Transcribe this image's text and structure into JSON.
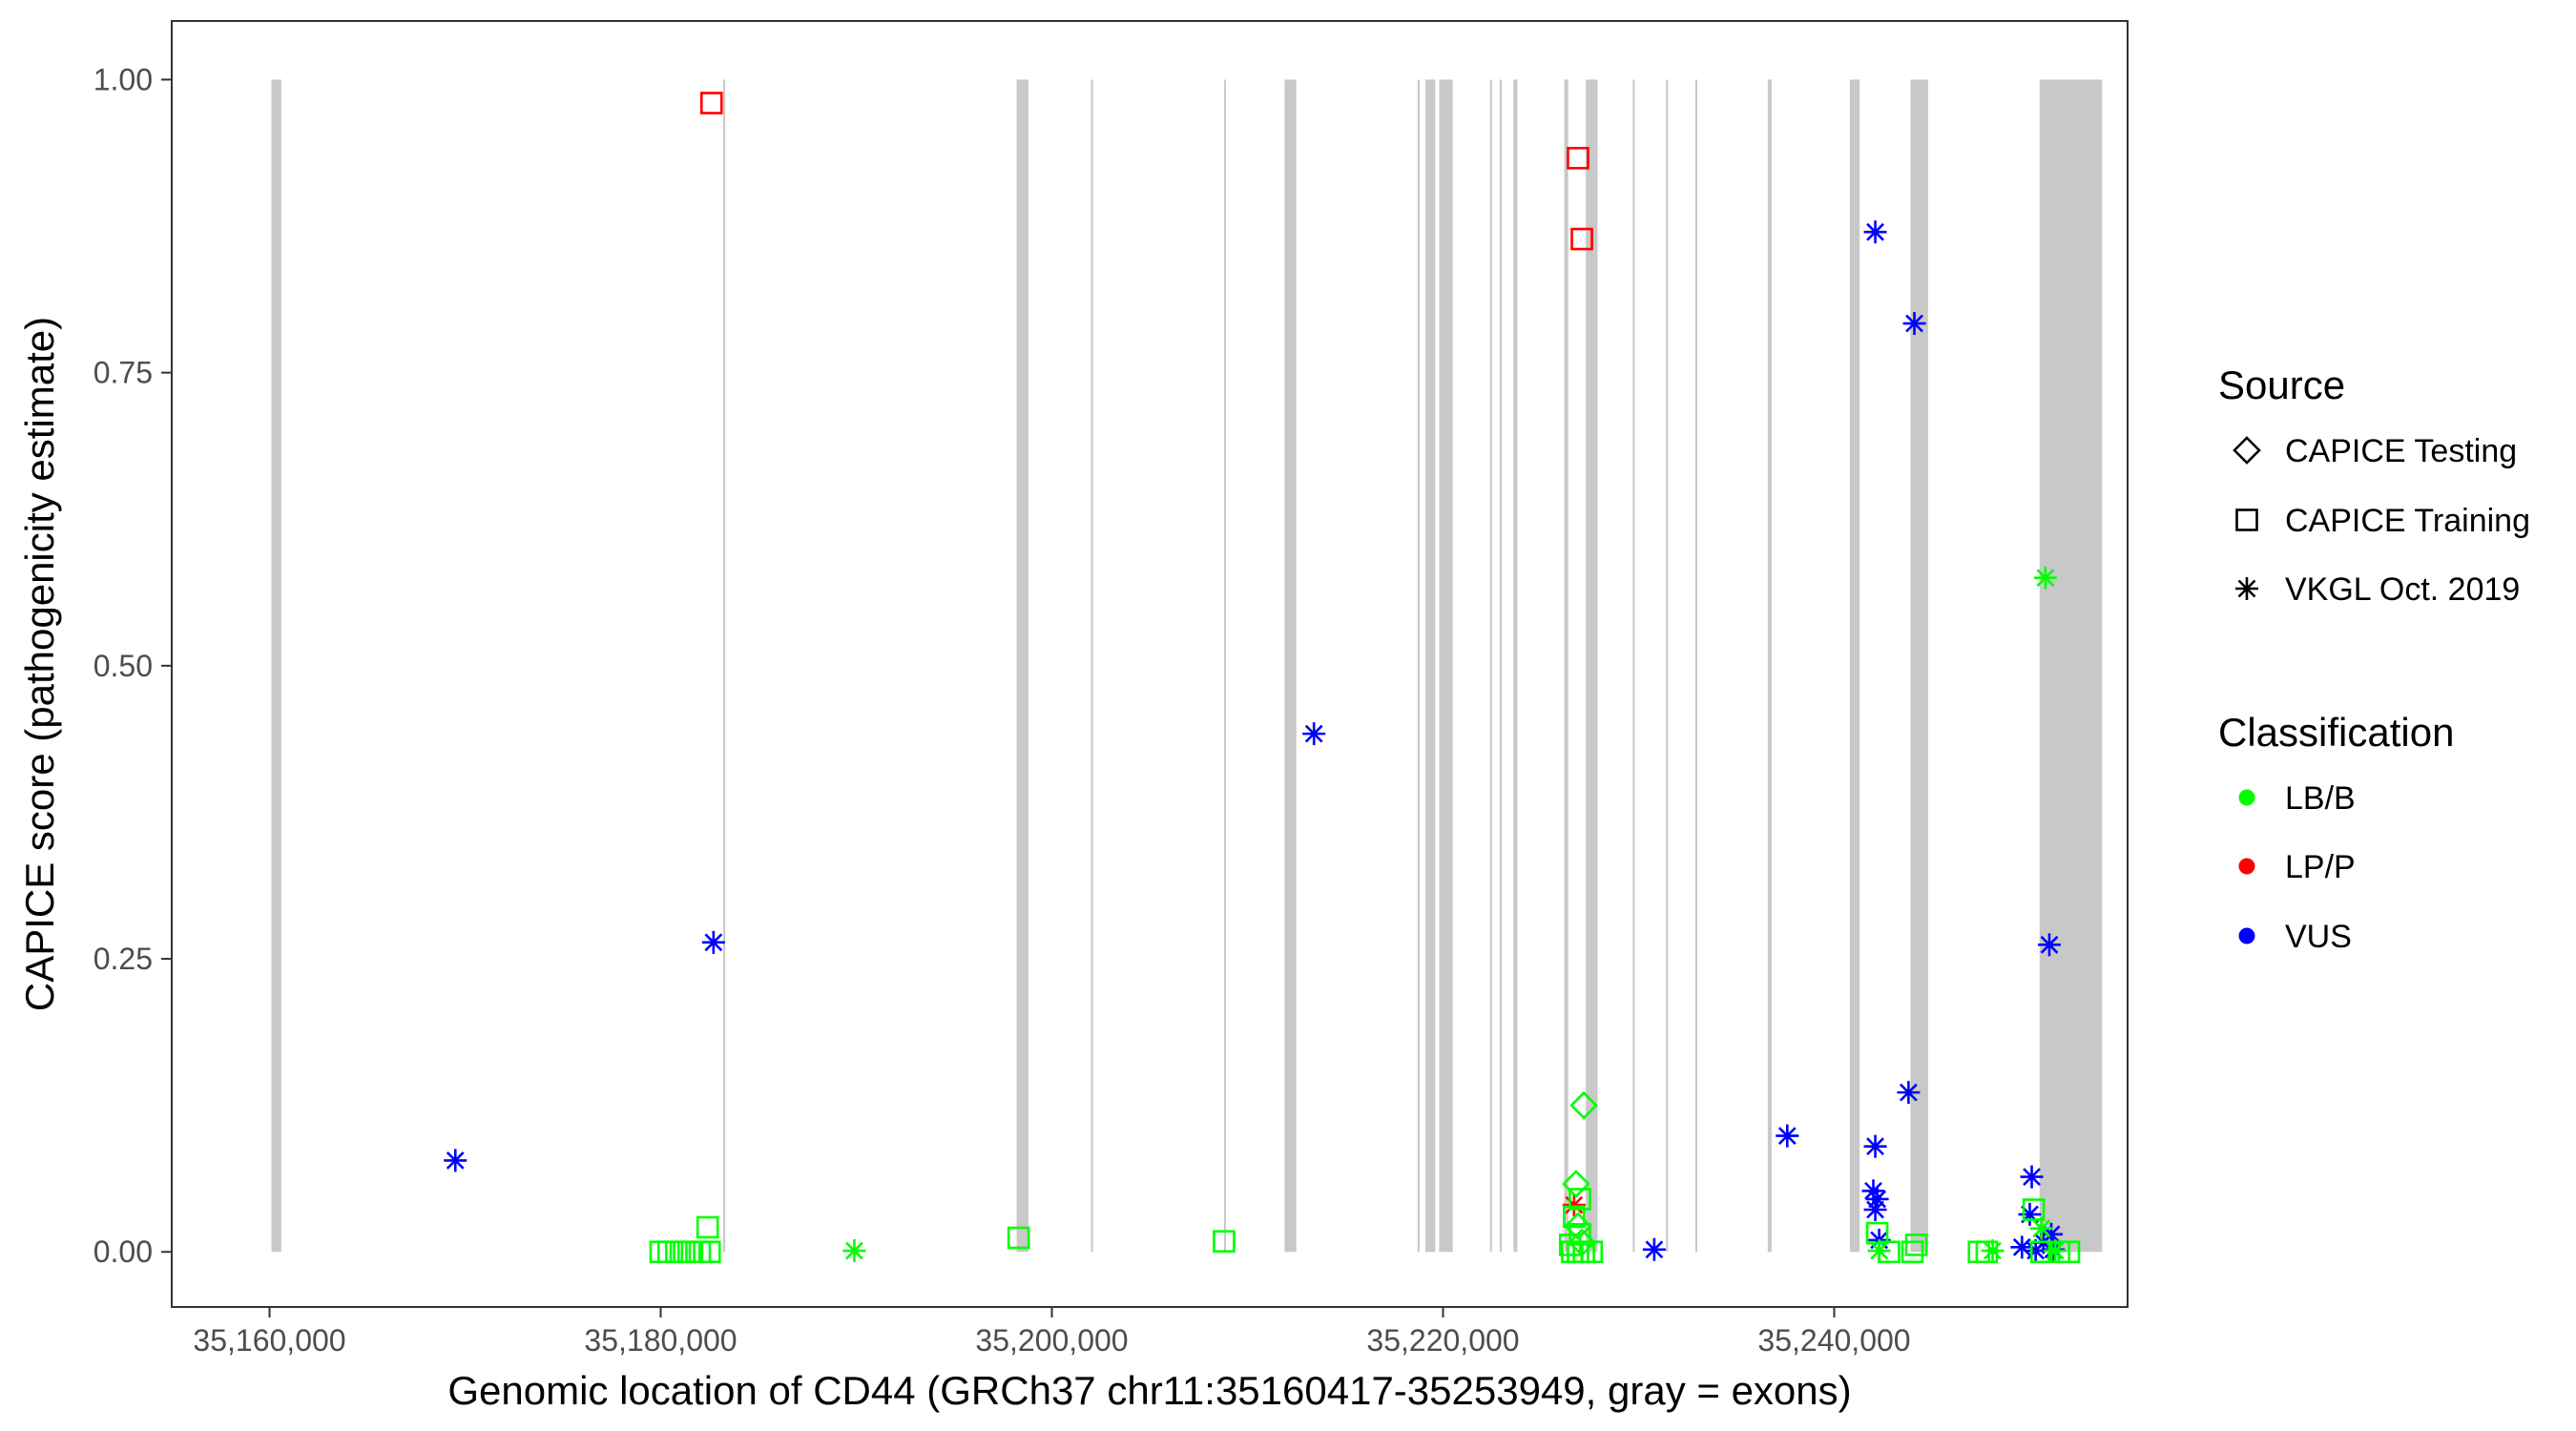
{
  "chart_data": {
    "type": "scatter",
    "title": "",
    "xlabel": "Genomic location of CD44 (GRCh37 chr11:35160417-35253949, gray = exons)",
    "ylabel": "CAPICE score (pathogenicity estimate)",
    "xlim": [
      35155000,
      35255000
    ],
    "ylim": [
      -0.047,
      1.05
    ],
    "x_ticks": [
      35160000,
      35180000,
      35200000,
      35220000,
      35240000
    ],
    "x_tick_labels": [
      "35,160,000",
      "35,180,000",
      "35,200,000",
      "35,220,000",
      "35,240,000"
    ],
    "y_ticks": [
      0,
      0.25,
      0.5,
      0.75,
      1.0
    ],
    "y_tick_labels": [
      "0.00",
      "0.25",
      "0.50",
      "0.75",
      "1.00"
    ],
    "grid": false,
    "exons": [
      [
        35160100,
        35160600
      ],
      [
        35183200,
        35183300
      ],
      [
        35198200,
        35198800
      ],
      [
        35202000,
        35202100
      ],
      [
        35208800,
        35208900
      ],
      [
        35211900,
        35212500
      ],
      [
        35218700,
        35218800
      ],
      [
        35219100,
        35219600
      ],
      [
        35219800,
        35220500
      ],
      [
        35222400,
        35222500
      ],
      [
        35222900,
        35223000
      ],
      [
        35223600,
        35223800
      ],
      [
        35226200,
        35226400
      ],
      [
        35227300,
        35227900
      ],
      [
        35229700,
        35229800
      ],
      [
        35231400,
        35231500
      ],
      [
        35232900,
        35233000
      ],
      [
        35236600,
        35236800
      ],
      [
        35240800,
        35241300
      ],
      [
        35243900,
        35244800
      ],
      [
        35250500,
        35253700
      ]
    ],
    "legend": {
      "position": "right",
      "source_title": "Source",
      "source_items": [
        {
          "label": "CAPICE Testing",
          "shape": "diamond"
        },
        {
          "label": "CAPICE Training",
          "shape": "square"
        },
        {
          "label": "VKGL Oct. 2019",
          "shape": "asterisk"
        }
      ],
      "class_title": "Classification",
      "class_items": [
        {
          "label": "LB/B",
          "color": "#00ff00"
        },
        {
          "label": "LP/P",
          "color": "#ff0000"
        },
        {
          "label": "VUS",
          "color": "#0000ff"
        }
      ]
    },
    "colors": {
      "LB/B": "#00ff00",
      "LP/P": "#ff0000",
      "VUS": "#0000ff"
    },
    "points": [
      {
        "x": 35182600,
        "y": 0.98,
        "shape": "square",
        "class": "LP/P"
      },
      {
        "x": 35226900,
        "y": 0.933,
        "shape": "square",
        "class": "LP/P"
      },
      {
        "x": 35227100,
        "y": 0.864,
        "shape": "square",
        "class": "LP/P"
      },
      {
        "x": 35226700,
        "y": 0.04,
        "shape": "asterisk",
        "class": "LP/P"
      },
      {
        "x": 35242100,
        "y": 0.87,
        "shape": "asterisk",
        "class": "VUS"
      },
      {
        "x": 35244100,
        "y": 0.792,
        "shape": "asterisk",
        "class": "VUS"
      },
      {
        "x": 35213400,
        "y": 0.442,
        "shape": "asterisk",
        "class": "VUS"
      },
      {
        "x": 35182700,
        "y": 0.264,
        "shape": "asterisk",
        "class": "VUS"
      },
      {
        "x": 35251000,
        "y": 0.262,
        "shape": "asterisk",
        "class": "VUS"
      },
      {
        "x": 35243800,
        "y": 0.136,
        "shape": "asterisk",
        "class": "VUS"
      },
      {
        "x": 35237600,
        "y": 0.099,
        "shape": "asterisk",
        "class": "VUS"
      },
      {
        "x": 35242100,
        "y": 0.09,
        "shape": "asterisk",
        "class": "VUS"
      },
      {
        "x": 35169500,
        "y": 0.078,
        "shape": "asterisk",
        "class": "VUS"
      },
      {
        "x": 35250100,
        "y": 0.064,
        "shape": "asterisk",
        "class": "VUS"
      },
      {
        "x": 35242000,
        "y": 0.052,
        "shape": "asterisk",
        "class": "VUS"
      },
      {
        "x": 35242200,
        "y": 0.045,
        "shape": "asterisk",
        "class": "VUS"
      },
      {
        "x": 35242100,
        "y": 0.036,
        "shape": "asterisk",
        "class": "VUS"
      },
      {
        "x": 35250000,
        "y": 0.032,
        "shape": "asterisk",
        "class": "VUS"
      },
      {
        "x": 35251100,
        "y": 0.015,
        "shape": "asterisk",
        "class": "VUS"
      },
      {
        "x": 35242300,
        "y": 0.01,
        "shape": "asterisk",
        "class": "VUS"
      },
      {
        "x": 35250700,
        "y": 0.008,
        "shape": "asterisk",
        "class": "VUS"
      },
      {
        "x": 35249600,
        "y": 0.004,
        "shape": "asterisk",
        "class": "VUS"
      },
      {
        "x": 35230800,
        "y": 0.002,
        "shape": "asterisk",
        "class": "VUS"
      },
      {
        "x": 35251200,
        "y": 0.002,
        "shape": "asterisk",
        "class": "VUS"
      },
      {
        "x": 35250300,
        "y": 0.001,
        "shape": "asterisk",
        "class": "VUS"
      },
      {
        "x": 35250800,
        "y": 0.575,
        "shape": "asterisk",
        "class": "LB/B"
      },
      {
        "x": 35189900,
        "y": 0.001,
        "shape": "asterisk",
        "class": "LB/B"
      },
      {
        "x": 35242300,
        "y": 0.001,
        "shape": "asterisk",
        "class": "LB/B"
      },
      {
        "x": 35248100,
        "y": 0.001,
        "shape": "asterisk",
        "class": "LB/B"
      },
      {
        "x": 35250600,
        "y": 0.02,
        "shape": "asterisk",
        "class": "LB/B"
      },
      {
        "x": 35251300,
        "y": 0.001,
        "shape": "asterisk",
        "class": "LB/B"
      },
      {
        "x": 35227200,
        "y": 0.125,
        "shape": "diamond",
        "class": "LB/B"
      },
      {
        "x": 35226800,
        "y": 0.058,
        "shape": "diamond",
        "class": "LB/B"
      },
      {
        "x": 35226900,
        "y": 0.022,
        "shape": "diamond",
        "class": "LB/B"
      },
      {
        "x": 35227100,
        "y": 0.008,
        "shape": "diamond",
        "class": "LB/B"
      },
      {
        "x": 35182400,
        "y": 0.021,
        "shape": "square",
        "class": "LB/B"
      },
      {
        "x": 35198300,
        "y": 0.012,
        "shape": "square",
        "class": "LB/B"
      },
      {
        "x": 35208800,
        "y": 0.009,
        "shape": "square",
        "class": "LB/B"
      },
      {
        "x": 35227000,
        "y": 0.045,
        "shape": "square",
        "class": "LB/B"
      },
      {
        "x": 35226700,
        "y": 0.03,
        "shape": "square",
        "class": "LB/B"
      },
      {
        "x": 35227000,
        "y": 0.015,
        "shape": "square",
        "class": "LB/B"
      },
      {
        "x": 35226500,
        "y": 0.006,
        "shape": "square",
        "class": "LB/B"
      },
      {
        "x": 35242200,
        "y": 0.016,
        "shape": "square",
        "class": "LB/B"
      },
      {
        "x": 35244200,
        "y": 0.006,
        "shape": "square",
        "class": "LB/B"
      },
      {
        "x": 35250200,
        "y": 0.036,
        "shape": "square",
        "class": "LB/B"
      },
      {
        "x": 35180000,
        "y": 0.0,
        "shape": "square",
        "class": "LB/B"
      },
      {
        "x": 35180400,
        "y": 0.0,
        "shape": "square",
        "class": "LB/B"
      },
      {
        "x": 35180800,
        "y": 0.0,
        "shape": "square",
        "class": "LB/B"
      },
      {
        "x": 35181200,
        "y": 0.0,
        "shape": "square",
        "class": "LB/B"
      },
      {
        "x": 35181600,
        "y": 0.0,
        "shape": "square",
        "class": "LB/B"
      },
      {
        "x": 35182000,
        "y": 0.0,
        "shape": "square",
        "class": "LB/B"
      },
      {
        "x": 35182500,
        "y": 0.0,
        "shape": "square",
        "class": "LB/B"
      },
      {
        "x": 35226600,
        "y": 0.0,
        "shape": "square",
        "class": "LB/B"
      },
      {
        "x": 35226900,
        "y": 0.0,
        "shape": "square",
        "class": "LB/B"
      },
      {
        "x": 35227200,
        "y": 0.0,
        "shape": "square",
        "class": "LB/B"
      },
      {
        "x": 35227600,
        "y": 0.0,
        "shape": "square",
        "class": "LB/B"
      },
      {
        "x": 35242800,
        "y": 0.0,
        "shape": "square",
        "class": "LB/B"
      },
      {
        "x": 35244000,
        "y": 0.0,
        "shape": "square",
        "class": "LB/B"
      },
      {
        "x": 35247400,
        "y": 0.0,
        "shape": "square",
        "class": "LB/B"
      },
      {
        "x": 35247800,
        "y": 0.0,
        "shape": "square",
        "class": "LB/B"
      },
      {
        "x": 35250600,
        "y": 0.0,
        "shape": "square",
        "class": "LB/B"
      },
      {
        "x": 35251500,
        "y": 0.0,
        "shape": "square",
        "class": "LB/B"
      },
      {
        "x": 35252000,
        "y": 0.0,
        "shape": "square",
        "class": "LB/B"
      }
    ]
  }
}
